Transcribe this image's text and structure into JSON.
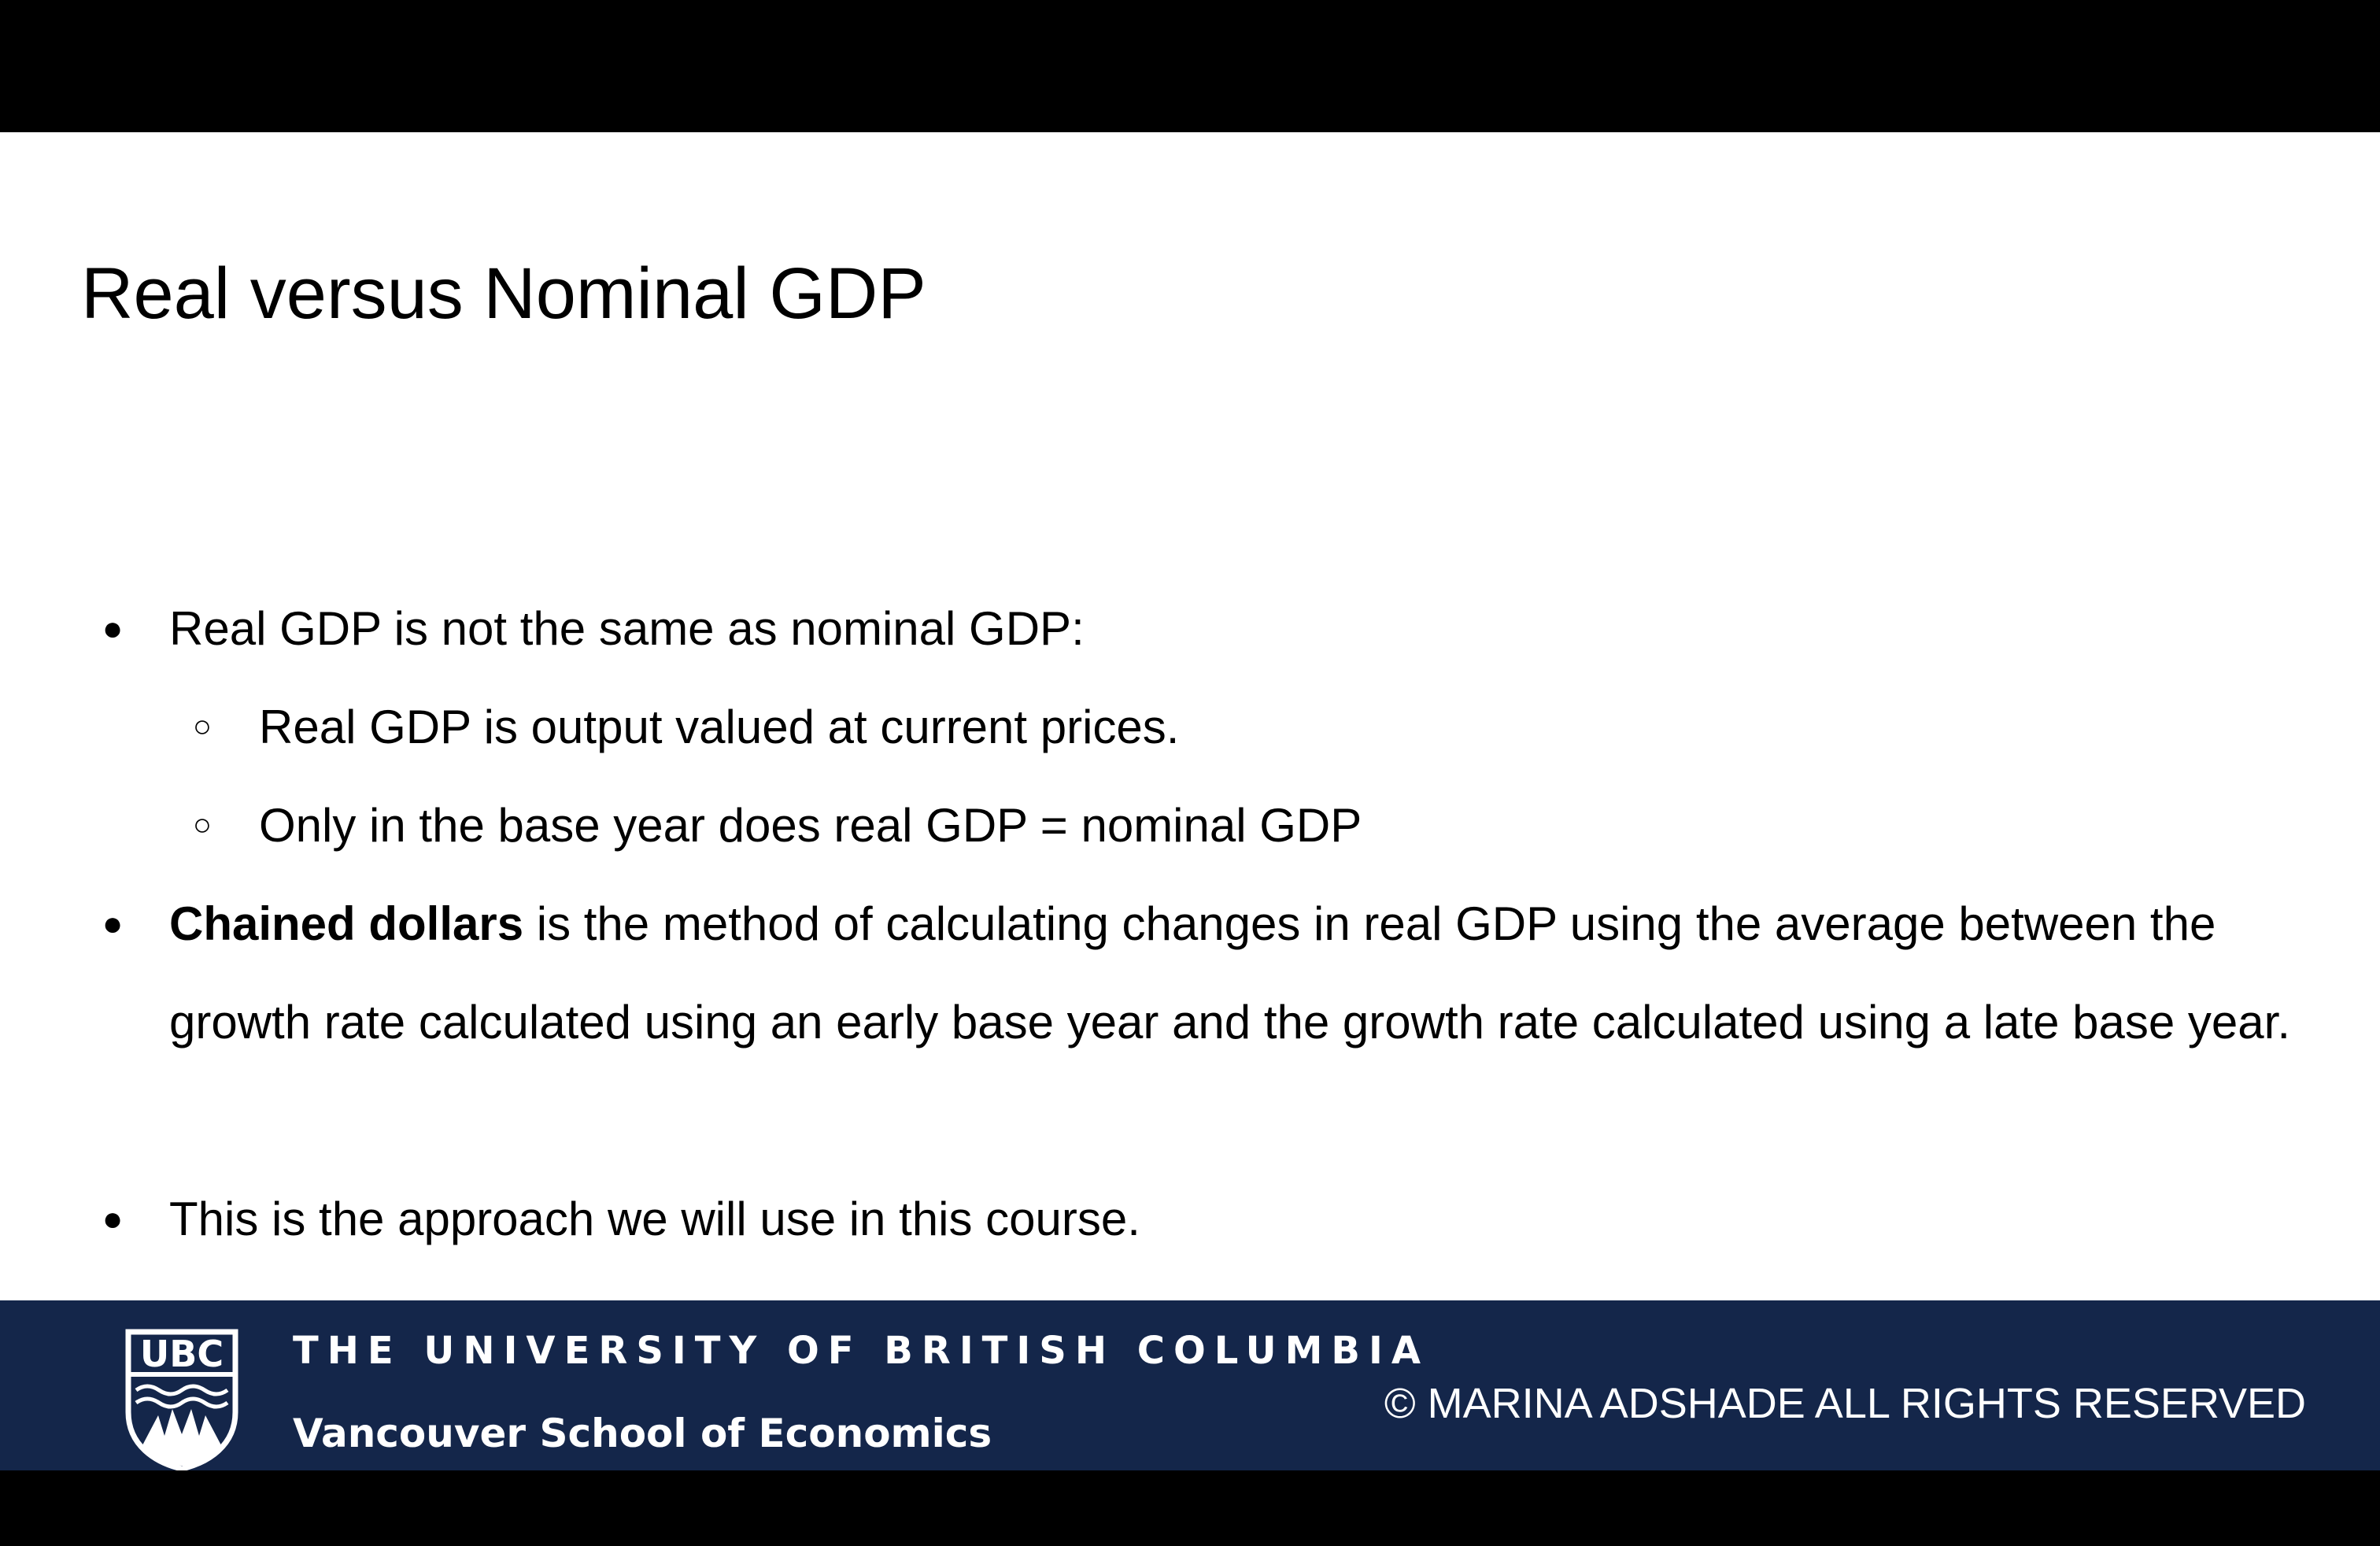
{
  "slide": {
    "title": "Real versus Nominal GDP",
    "bullets": [
      {
        "level": 1,
        "text": "Real GDP is not the same as nominal GDP:"
      },
      {
        "level": 2,
        "text": "Real GDP is output valued at current prices."
      },
      {
        "level": 2,
        "text": "Only in the base year does real GDP = nominal GDP"
      },
      {
        "level": 1,
        "bold_lead": "Chained dollars",
        "text": " is the method of calculating changes in real GDP using the average between the growth rate calculated using an early base year and the growth rate calculated using a late base year."
      },
      {
        "level": 1,
        "text": "This is the approach we will use in this course."
      }
    ],
    "markers": {
      "level1": "●",
      "level2": "○"
    }
  },
  "footer": {
    "logo_text": "UBC",
    "logo_icon": "ubc-crest-icon",
    "university": "THE UNIVERSITY OF BRITISH COLUMBIA",
    "school": "Vancouver School of Economics",
    "copyright": "© MARINA ADSHADE ALL RIGHTS RESERVED",
    "background_color": "#14264a"
  }
}
